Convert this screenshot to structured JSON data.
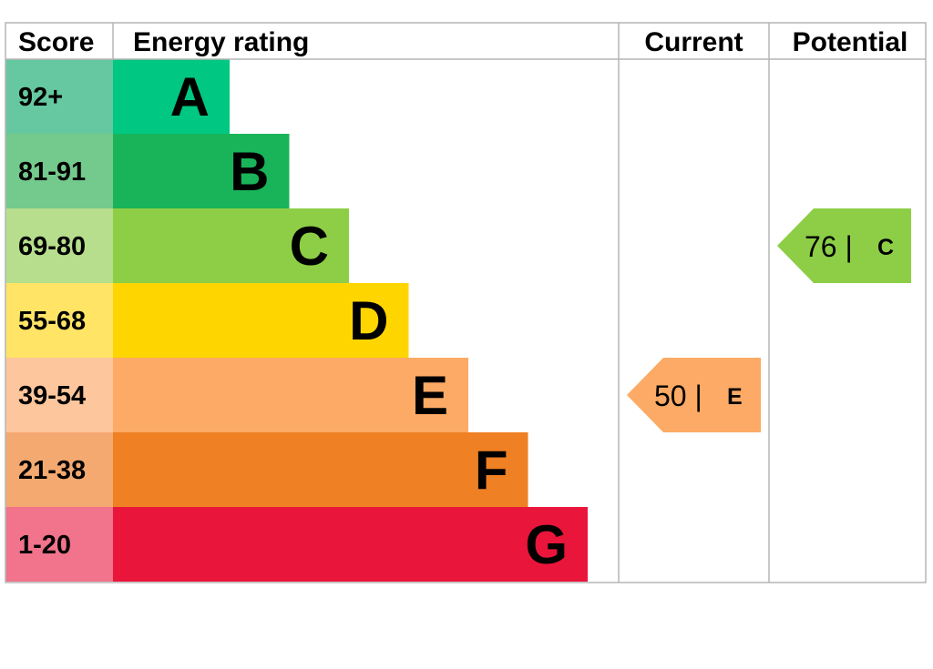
{
  "chart_data": {
    "type": "bar",
    "headers": {
      "score": "Score",
      "rating": "Energy rating",
      "current": "Current",
      "potential": "Potential"
    },
    "bands": [
      {
        "letter": "A",
        "range": "92+",
        "color": "#00c781",
        "score_color": "#66c8a0"
      },
      {
        "letter": "B",
        "range": "81-91",
        "color": "#19b459",
        "score_color": "#74c98c"
      },
      {
        "letter": "C",
        "range": "69-80",
        "color": "#8dce46",
        "score_color": "#b6de8c"
      },
      {
        "letter": "D",
        "range": "55-68",
        "color": "#ffd500",
        "score_color": "#ffe466"
      },
      {
        "letter": "E",
        "range": "39-54",
        "color": "#fcaa65",
        "score_color": "#fdc69c"
      },
      {
        "letter": "F",
        "range": "21-38",
        "color": "#ef8023",
        "score_color": "#f4a970"
      },
      {
        "letter": "G",
        "range": "1-20",
        "color": "#e9153b",
        "score_color": "#f1738c"
      }
    ],
    "current": {
      "value": 50,
      "value_label": "50 |",
      "letter": "E",
      "color": "#fcaa65"
    },
    "potential": {
      "value": 76,
      "value_label": "76 |",
      "letter": "C",
      "color": "#8dce46"
    }
  }
}
